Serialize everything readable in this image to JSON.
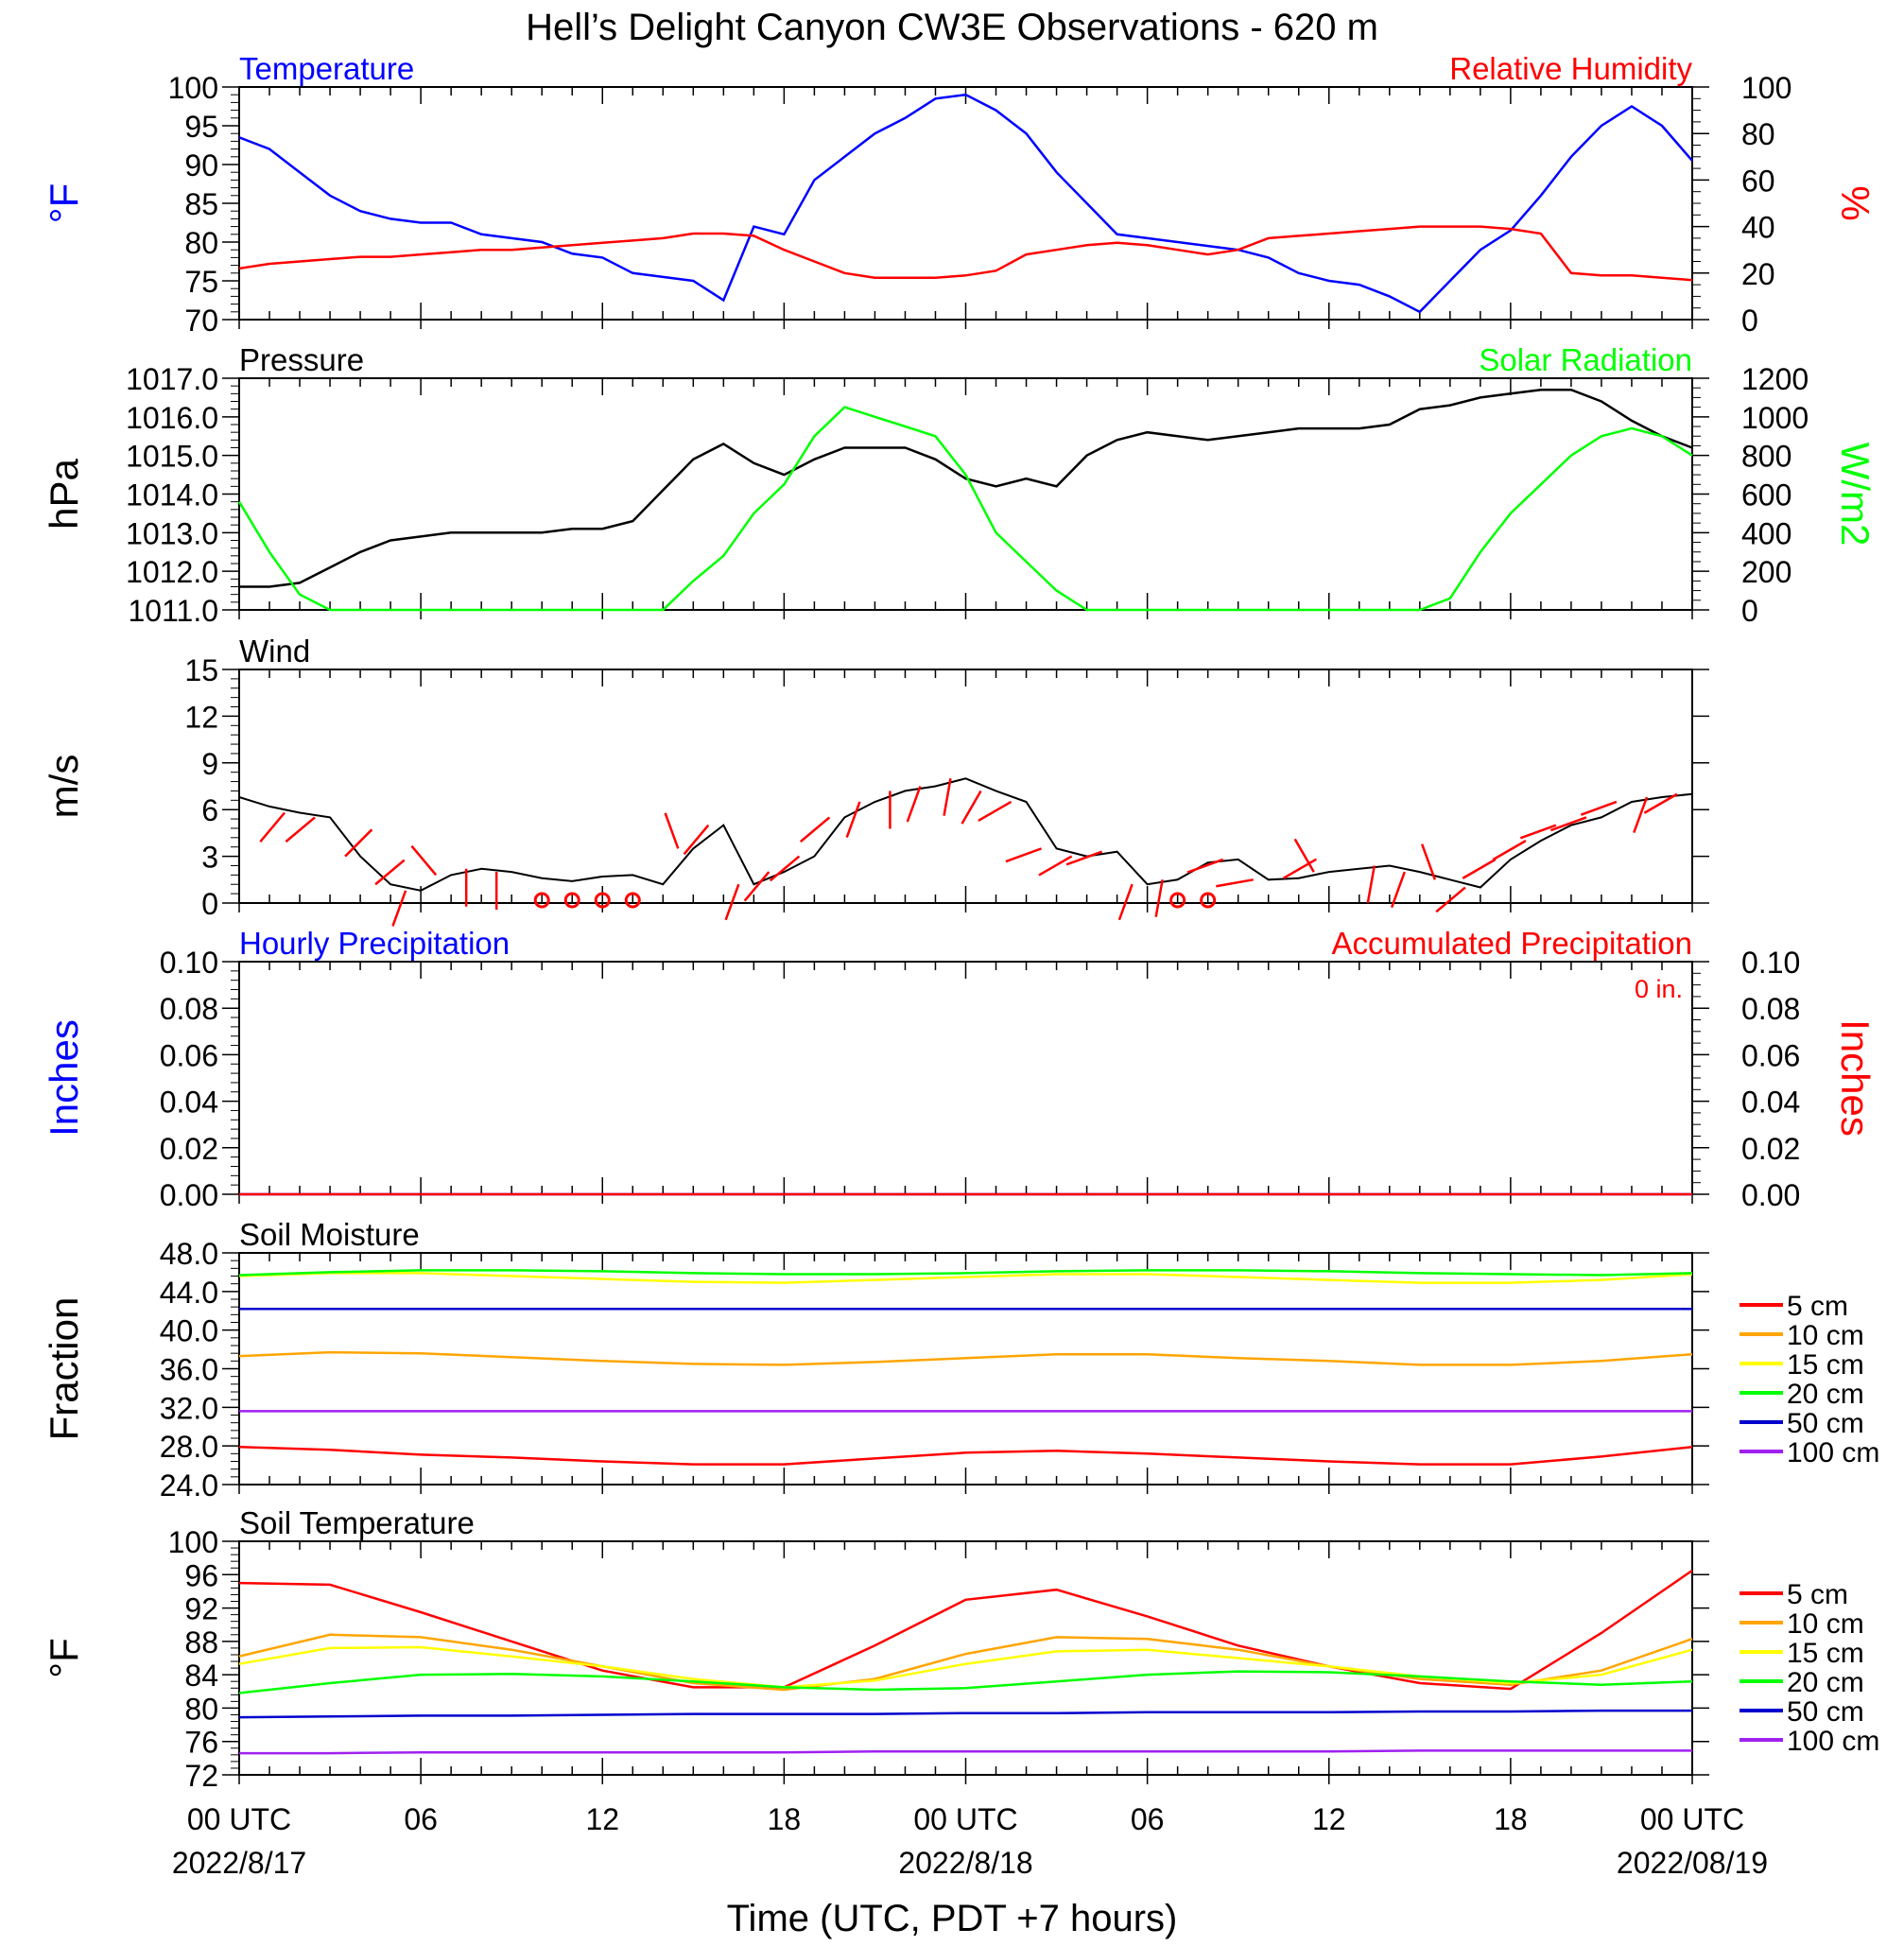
{
  "title": "Hell’s Delight Canyon CW3E Observations - 620 m",
  "x_axis": {
    "label": "Time (UTC, PDT +7 hours)",
    "ticks": [
      {
        "hours": 0,
        "time": "00 UTC",
        "date": "2022/8/17"
      },
      {
        "hours": 6,
        "time": "06",
        "date": ""
      },
      {
        "hours": 12,
        "time": "12",
        "date": ""
      },
      {
        "hours": 18,
        "time": "18",
        "date": ""
      },
      {
        "hours": 24,
        "time": "00 UTC",
        "date": "2022/8/18"
      },
      {
        "hours": 30,
        "time": "06",
        "date": ""
      },
      {
        "hours": 36,
        "time": "12",
        "date": ""
      },
      {
        "hours": 42,
        "time": "18",
        "date": ""
      },
      {
        "hours": 48,
        "time": "00 UTC",
        "date": "2022/08/19"
      }
    ]
  },
  "colors": {
    "temperature": "#0000ff",
    "relative_humidity": "#ff0000",
    "pressure": "#000000",
    "solar_radiation": "#00ff00",
    "wind": "#000000",
    "wind_barb": "#ff0000",
    "hourly_precip": "#0000ff",
    "accum_precip": "#ff0000",
    "cm5": "#ff0000",
    "cm10": "#ffa500",
    "cm15": "#ffff00",
    "cm20": "#00ff00",
    "cm50": "#0000cd",
    "cm100": "#a020f0"
  },
  "chart_data": [
    {
      "type": "line",
      "panel": "temperature_rh",
      "title_left": "Temperature",
      "title_right": "Relative Humidity",
      "ylabel_left": "°F",
      "ylabel_right": "%",
      "ylim_left": [
        70,
        100
      ],
      "ylim_right": [
        0,
        100
      ],
      "yticks_left": [
        "70",
        "75",
        "80",
        "85",
        "90",
        "95",
        "100"
      ],
      "yticks_right": [
        "0",
        "20",
        "40",
        "60",
        "80",
        "100"
      ],
      "x_hours": [
        0,
        1,
        2,
        3,
        4,
        5,
        6,
        7,
        8,
        9,
        10,
        11,
        12,
        13,
        14,
        15,
        16,
        17,
        18,
        19,
        20,
        21,
        22,
        23,
        24,
        25,
        26,
        27,
        28,
        29,
        30,
        31,
        32,
        33,
        34,
        35,
        36,
        37,
        38,
        39,
        40,
        41,
        42,
        43,
        44,
        45,
        46,
        47,
        48
      ],
      "series": [
        {
          "name": "Temperature",
          "axis": "left",
          "color": "#0000ff",
          "values": [
            93.5,
            92,
            89,
            86,
            84,
            83,
            82.5,
            82.5,
            81,
            80.5,
            80,
            78.5,
            78,
            76,
            75.5,
            75,
            72.5,
            82,
            81,
            88,
            91,
            94,
            96,
            98.5,
            99,
            97,
            94,
            89,
            85,
            81,
            80.5,
            80,
            79.5,
            79,
            78,
            76,
            75,
            74.5,
            73,
            71,
            75,
            79,
            81.5,
            86,
            91,
            95,
            97.5,
            95,
            90.5
          ]
        },
        {
          "name": "Relative Humidity",
          "axis": "right",
          "color": "#ff0000",
          "values": [
            22,
            24,
            25,
            26,
            27,
            27,
            28,
            29,
            30,
            30,
            31,
            32,
            33,
            34,
            35,
            37,
            37,
            36,
            30,
            25,
            20,
            18,
            18,
            18,
            19,
            21,
            28,
            30,
            32,
            33,
            32,
            30,
            28,
            30,
            35,
            36,
            37,
            38,
            39,
            40,
            40,
            40,
            39,
            37,
            20,
            19,
            19,
            18,
            17
          ]
        }
      ]
    },
    {
      "type": "line",
      "panel": "pressure_solar",
      "title_left": "Pressure",
      "title_right": "Solar Radiation",
      "ylabel_left": "hPa",
      "ylabel_right": "W/m2",
      "ylim_left": [
        1011,
        1017
      ],
      "ylim_right": [
        0,
        1200
      ],
      "yticks_left": [
        "1011.0",
        "1012.0",
        "1013.0",
        "1014.0",
        "1015.0",
        "1016.0",
        "1017.0"
      ],
      "yticks_right": [
        "0",
        "200",
        "400",
        "600",
        "800",
        "1000",
        "1200"
      ],
      "x_hours": [
        0,
        1,
        2,
        3,
        4,
        5,
        6,
        7,
        8,
        9,
        10,
        11,
        12,
        13,
        14,
        15,
        16,
        17,
        18,
        19,
        20,
        21,
        22,
        23,
        24,
        25,
        26,
        27,
        28,
        29,
        30,
        31,
        32,
        33,
        34,
        35,
        36,
        37,
        38,
        39,
        40,
        41,
        42,
        43,
        44,
        45,
        46,
        47,
        48
      ],
      "series": [
        {
          "name": "Pressure",
          "axis": "left",
          "color": "#000000",
          "values": [
            1011.6,
            1011.6,
            1011.7,
            1012.1,
            1012.5,
            1012.8,
            1012.9,
            1013.0,
            1013.0,
            1013.0,
            1013.0,
            1013.1,
            1013.1,
            1013.3,
            1014.1,
            1014.9,
            1015.3,
            1014.8,
            1014.5,
            1014.9,
            1015.2,
            1015.2,
            1015.2,
            1014.9,
            1014.4,
            1014.2,
            1014.4,
            1014.2,
            1015.0,
            1015.4,
            1015.6,
            1015.5,
            1015.4,
            1015.5,
            1015.6,
            1015.7,
            1015.7,
            1015.7,
            1015.8,
            1016.2,
            1016.3,
            1016.5,
            1016.6,
            1016.7,
            1016.7,
            1016.4,
            1015.9,
            1015.5,
            1015.2
          ]
        },
        {
          "name": "Solar Radiation",
          "axis": "right",
          "color": "#00ff00",
          "values": [
            560,
            300,
            80,
            0,
            0,
            0,
            0,
            0,
            0,
            0,
            0,
            0,
            0,
            0,
            0,
            150,
            280,
            500,
            650,
            900,
            1050,
            1000,
            950,
            900,
            700,
            400,
            250,
            100,
            0,
            0,
            0,
            0,
            0,
            0,
            0,
            0,
            0,
            0,
            0,
            0,
            60,
            300,
            500,
            650,
            800,
            900,
            940,
            900,
            800
          ]
        }
      ]
    },
    {
      "type": "line",
      "panel": "wind",
      "title_left": "Wind",
      "ylabel_left": "m/s",
      "ylim_left": [
        0,
        15
      ],
      "yticks_left": [
        "0",
        "3",
        "6",
        "9",
        "12",
        "15"
      ],
      "x_hours": [
        0,
        1,
        2,
        3,
        4,
        5,
        6,
        7,
        8,
        9,
        10,
        11,
        12,
        13,
        14,
        15,
        16,
        17,
        18,
        19,
        20,
        21,
        22,
        23,
        24,
        25,
        26,
        27,
        28,
        29,
        30,
        31,
        32,
        33,
        34,
        35,
        36,
        37,
        38,
        39,
        40,
        41,
        42,
        43,
        44,
        45,
        46,
        47,
        48
      ],
      "series": [
        {
          "name": "Wind Speed",
          "axis": "left",
          "color": "#000000",
          "values": [
            6.8,
            6.2,
            5.8,
            5.5,
            3.0,
            1.2,
            0.8,
            1.8,
            2.2,
            2.0,
            1.6,
            1.4,
            1.7,
            1.8,
            1.2,
            3.5,
            5.0,
            1.2,
            2.0,
            3.0,
            5.5,
            6.5,
            7.2,
            7.5,
            8.0,
            7.2,
            6.5,
            3.5,
            3.0,
            3.3,
            1.2,
            1.5,
            2.6,
            2.8,
            1.5,
            1.6,
            2.0,
            2.2,
            2.4,
            2.0,
            1.5,
            1.0,
            2.8,
            4.0,
            5.0,
            5.5,
            6.5,
            6.8,
            7.0
          ]
        }
      ],
      "calm_hours": [
        10,
        11,
        12,
        13,
        31,
        32
      ],
      "barbs": [
        {
          "hours": 1.5,
          "dir_deg": 220
        },
        {
          "hours": 2.5,
          "dir_deg": 230
        },
        {
          "hours": 3.5,
          "dir_deg": 45
        },
        {
          "hours": 4.5,
          "dir_deg": 50
        },
        {
          "hours": 5.5,
          "dir_deg": 200
        },
        {
          "hours": 6.5,
          "dir_deg": 320
        },
        {
          "hours": 7.5,
          "dir_deg": 180
        },
        {
          "hours": 8.5,
          "dir_deg": 180
        },
        {
          "hours": 14.5,
          "dir_deg": 340
        },
        {
          "hours": 15.5,
          "dir_deg": 220
        },
        {
          "hours": 16.5,
          "dir_deg": 200
        },
        {
          "hours": 17.5,
          "dir_deg": 220
        },
        {
          "hours": 18.5,
          "dir_deg": 230
        },
        {
          "hours": 19.5,
          "dir_deg": 230
        },
        {
          "hours": 20.5,
          "dir_deg": 200
        },
        {
          "hours": 21.5,
          "dir_deg": 180
        },
        {
          "hours": 22.5,
          "dir_deg": 200
        },
        {
          "hours": 23.5,
          "dir_deg": 190
        },
        {
          "hours": 24.5,
          "dir_deg": 210
        },
        {
          "hours": 25.5,
          "dir_deg": 240
        },
        {
          "hours": 26.5,
          "dir_deg": 250
        },
        {
          "hours": 27.5,
          "dir_deg": 240
        },
        {
          "hours": 28.5,
          "dir_deg": 250
        },
        {
          "hours": 29.5,
          "dir_deg": 200
        },
        {
          "hours": 30.5,
          "dir_deg": 190
        },
        {
          "hours": 32.5,
          "dir_deg": 250
        },
        {
          "hours": 33.5,
          "dir_deg": 260
        },
        {
          "hours": 34.5,
          "dir_deg": 60
        },
        {
          "hours": 35.5,
          "dir_deg": 330
        },
        {
          "hours": 37.5,
          "dir_deg": 190
        },
        {
          "hours": 38.5,
          "dir_deg": 200
        },
        {
          "hours": 39.5,
          "dir_deg": 340
        },
        {
          "hours": 40.5,
          "dir_deg": 230
        },
        {
          "hours": 41.5,
          "dir_deg": 240
        },
        {
          "hours": 42.5,
          "dir_deg": 240
        },
        {
          "hours": 43.5,
          "dir_deg": 250
        },
        {
          "hours": 44.5,
          "dir_deg": 250
        },
        {
          "hours": 45.5,
          "dir_deg": 250
        },
        {
          "hours": 46.5,
          "dir_deg": 200
        },
        {
          "hours": 47.5,
          "dir_deg": 240
        }
      ]
    },
    {
      "type": "line",
      "panel": "precipitation",
      "title_left": "Hourly Precipitation",
      "title_right": "Accumulated Precipitation",
      "annotation": "0 in.",
      "ylabel_left": "Inches",
      "ylabel_right": "Inches",
      "ylim_left": [
        0,
        0.1
      ],
      "yticks_left": [
        "0.00",
        "0.02",
        "0.04",
        "0.06",
        "0.08",
        "0.10"
      ],
      "yticks_right": [
        "0.00",
        "0.02",
        "0.04",
        "0.06",
        "0.08",
        "0.10"
      ],
      "x_hours": [
        0,
        48
      ],
      "series": [
        {
          "name": "Hourly Precipitation",
          "axis": "left",
          "color": "#0000ff",
          "values": [
            0,
            0
          ]
        },
        {
          "name": "Accumulated Precipitation",
          "axis": "left",
          "color": "#ff0000",
          "values": [
            0,
            0
          ]
        }
      ]
    },
    {
      "type": "line",
      "panel": "soil_moisture",
      "title_left": "Soil Moisture",
      "ylabel_left": "Fraction",
      "ylim_left": [
        24,
        48
      ],
      "yticks_left": [
        "24.0",
        "28.0",
        "32.0",
        "36.0",
        "40.0",
        "44.0",
        "48.0"
      ],
      "x_hours": [
        0,
        3,
        6,
        9,
        12,
        15,
        18,
        21,
        24,
        27,
        30,
        33,
        36,
        39,
        42,
        45,
        48
      ],
      "series": [
        {
          "name": "5 cm",
          "color": "#ff0000",
          "values": [
            27.9,
            27.6,
            27.1,
            26.8,
            26.4,
            26.1,
            26.1,
            26.7,
            27.3,
            27.5,
            27.2,
            26.8,
            26.4,
            26.1,
            26.1,
            26.9,
            27.9
          ]
        },
        {
          "name": "10 cm",
          "color": "#ffa500",
          "values": [
            37.3,
            37.7,
            37.6,
            37.2,
            36.8,
            36.5,
            36.4,
            36.7,
            37.1,
            37.5,
            37.5,
            37.1,
            36.8,
            36.4,
            36.4,
            36.8,
            37.5
          ]
        },
        {
          "name": "15 cm",
          "color": "#ffff00",
          "values": [
            45.6,
            45.9,
            45.9,
            45.6,
            45.3,
            45.0,
            44.9,
            45.2,
            45.5,
            45.8,
            45.8,
            45.5,
            45.2,
            44.9,
            44.9,
            45.2,
            45.8
          ]
        },
        {
          "name": "20 cm",
          "color": "#00ff00",
          "values": [
            45.7,
            46.0,
            46.2,
            46.2,
            46.1,
            45.9,
            45.8,
            45.8,
            45.9,
            46.1,
            46.2,
            46.2,
            46.1,
            45.9,
            45.8,
            45.7,
            45.9
          ]
        },
        {
          "name": "50 cm",
          "color": "#0000cd",
          "values": [
            42.2,
            42.2,
            42.2,
            42.2,
            42.2,
            42.2,
            42.2,
            42.2,
            42.2,
            42.2,
            42.2,
            42.2,
            42.2,
            42.2,
            42.2,
            42.2,
            42.2
          ]
        },
        {
          "name": "100 cm",
          "color": "#a020f0",
          "values": [
            31.6,
            31.6,
            31.6,
            31.6,
            31.6,
            31.6,
            31.6,
            31.6,
            31.6,
            31.6,
            31.6,
            31.6,
            31.6,
            31.6,
            31.6,
            31.6,
            31.6
          ]
        }
      ]
    },
    {
      "type": "line",
      "panel": "soil_temperature",
      "title_left": "Soil Temperature",
      "ylabel_left": "°F",
      "ylim_left": [
        72,
        100
      ],
      "yticks_left": [
        "72",
        "76",
        "80",
        "84",
        "88",
        "92",
        "96",
        "100"
      ],
      "x_hours": [
        0,
        3,
        6,
        9,
        12,
        15,
        18,
        21,
        24,
        27,
        30,
        33,
        36,
        39,
        42,
        45,
        48
      ],
      "series": [
        {
          "name": "5 cm",
          "color": "#ff0000",
          "values": [
            95.0,
            94.8,
            91.5,
            88.0,
            84.5,
            82.5,
            82.5,
            87.5,
            93.0,
            94.2,
            91.0,
            87.5,
            85.0,
            83.0,
            82.3,
            89.0,
            96.5
          ]
        },
        {
          "name": "10 cm",
          "color": "#ffa500",
          "values": [
            86.2,
            88.8,
            88.5,
            87.0,
            85.0,
            83.0,
            82.2,
            83.5,
            86.5,
            88.5,
            88.3,
            87.0,
            85.0,
            83.5,
            82.8,
            84.5,
            88.3
          ]
        },
        {
          "name": "15 cm",
          "color": "#ffff00",
          "values": [
            85.3,
            87.2,
            87.3,
            86.2,
            85.0,
            83.5,
            82.5,
            83.3,
            85.3,
            86.8,
            87.0,
            86.0,
            85.0,
            83.8,
            83.0,
            84.0,
            87.0
          ]
        },
        {
          "name": "20 cm",
          "color": "#00ff00",
          "values": [
            81.8,
            83.0,
            84.0,
            84.1,
            83.8,
            83.2,
            82.5,
            82.2,
            82.4,
            83.2,
            84.0,
            84.4,
            84.3,
            83.8,
            83.2,
            82.8,
            83.2
          ]
        },
        {
          "name": "50 cm",
          "color": "#0000cd",
          "values": [
            78.9,
            79.0,
            79.1,
            79.1,
            79.2,
            79.3,
            79.3,
            79.3,
            79.4,
            79.4,
            79.5,
            79.5,
            79.5,
            79.6,
            79.6,
            79.7,
            79.7
          ]
        },
        {
          "name": "100 cm",
          "color": "#a020f0",
          "values": [
            74.6,
            74.6,
            74.7,
            74.7,
            74.7,
            74.7,
            74.7,
            74.8,
            74.8,
            74.8,
            74.8,
            74.8,
            74.8,
            74.9,
            74.9,
            74.9,
            74.9
          ]
        }
      ]
    }
  ]
}
